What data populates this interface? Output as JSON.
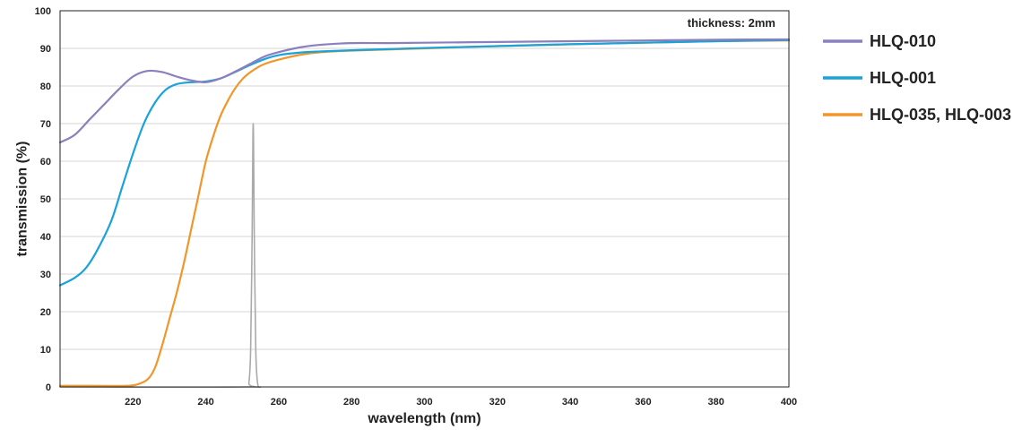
{
  "chart_data": {
    "type": "line",
    "title": "",
    "xlabel": "wavelength (nm)",
    "ylabel": "transmission (%)",
    "xlim": [
      200,
      400
    ],
    "ylim": [
      0,
      100
    ],
    "x_ticks": [
      220,
      240,
      260,
      280,
      300,
      320,
      340,
      360,
      380,
      400
    ],
    "y_ticks": [
      0,
      10,
      20,
      30,
      40,
      50,
      60,
      70,
      80,
      90,
      100
    ],
    "grid": "horizontal",
    "legend_position": "right",
    "annotation": "thickness: 2mm",
    "series": [
      {
        "name": "HLQ-010",
        "color": "#8c7fbd",
        "points": [
          [
            200,
            65
          ],
          [
            204,
            67
          ],
          [
            208,
            71
          ],
          [
            212,
            75
          ],
          [
            216,
            79
          ],
          [
            220,
            82.5
          ],
          [
            224,
            84
          ],
          [
            228,
            83.7
          ],
          [
            232,
            82.5
          ],
          [
            236,
            81.5
          ],
          [
            240,
            81
          ],
          [
            244,
            82
          ],
          [
            248,
            83.8
          ],
          [
            252,
            85.8
          ],
          [
            256,
            87.8
          ],
          [
            260,
            89
          ],
          [
            266,
            90.3
          ],
          [
            272,
            91
          ],
          [
            280,
            91.4
          ],
          [
            290,
            91.4
          ],
          [
            300,
            91.5
          ],
          [
            320,
            91.7
          ],
          [
            340,
            91.9
          ],
          [
            360,
            92.1
          ],
          [
            380,
            92.3
          ],
          [
            400,
            92.4
          ]
        ]
      },
      {
        "name": "HLQ-001",
        "color": "#1aa3d9",
        "points": [
          [
            200,
            27
          ],
          [
            204,
            29
          ],
          [
            207,
            31.5
          ],
          [
            210,
            36
          ],
          [
            214,
            44
          ],
          [
            217,
            53
          ],
          [
            220,
            62
          ],
          [
            223,
            70
          ],
          [
            226,
            75.5
          ],
          [
            229,
            79
          ],
          [
            232,
            80.5
          ],
          [
            236,
            81
          ],
          [
            240,
            81.2
          ],
          [
            244,
            82
          ],
          [
            248,
            83.7
          ],
          [
            252,
            85.5
          ],
          [
            256,
            87.1
          ],
          [
            260,
            88.2
          ],
          [
            266,
            88.9
          ],
          [
            272,
            89.2
          ],
          [
            280,
            89.5
          ],
          [
            290,
            89.8
          ],
          [
            300,
            90.1
          ],
          [
            320,
            90.6
          ],
          [
            340,
            91.1
          ],
          [
            360,
            91.5
          ],
          [
            380,
            91.9
          ],
          [
            400,
            92.2
          ]
        ]
      },
      {
        "name": "HLQ-035, HLQ-003",
        "color": "#f0962a",
        "points": [
          [
            200,
            0.3
          ],
          [
            210,
            0.3
          ],
          [
            218,
            0.3
          ],
          [
            221,
            0.6
          ],
          [
            224,
            2
          ],
          [
            226,
            5
          ],
          [
            228,
            11
          ],
          [
            230,
            18
          ],
          [
            232,
            25
          ],
          [
            234,
            33
          ],
          [
            236,
            42
          ],
          [
            238,
            51
          ],
          [
            240,
            60
          ],
          [
            242,
            66.5
          ],
          [
            244,
            72
          ],
          [
            246,
            76
          ],
          [
            248,
            79.3
          ],
          [
            250,
            81.8
          ],
          [
            252,
            83.5
          ],
          [
            254,
            84.8
          ],
          [
            256,
            85.8
          ],
          [
            260,
            87
          ],
          [
            266,
            88.3
          ],
          [
            272,
            89
          ],
          [
            280,
            89.4
          ],
          [
            290,
            89.7
          ],
          [
            300,
            90
          ],
          [
            320,
            90.6
          ],
          [
            340,
            91.1
          ],
          [
            360,
            91.5
          ],
          [
            380,
            91.9
          ],
          [
            400,
            92.1
          ]
        ]
      },
      {
        "name": "",
        "color": "#aaaaaa",
        "points": [
          [
            200,
            0
          ],
          [
            251,
            0
          ],
          [
            251.8,
            1
          ],
          [
            252.3,
            10
          ],
          [
            252.7,
            40
          ],
          [
            253,
            70
          ],
          [
            253.3,
            40
          ],
          [
            253.7,
            10
          ],
          [
            254.2,
            1
          ],
          [
            255,
            0
          ]
        ]
      }
    ]
  }
}
